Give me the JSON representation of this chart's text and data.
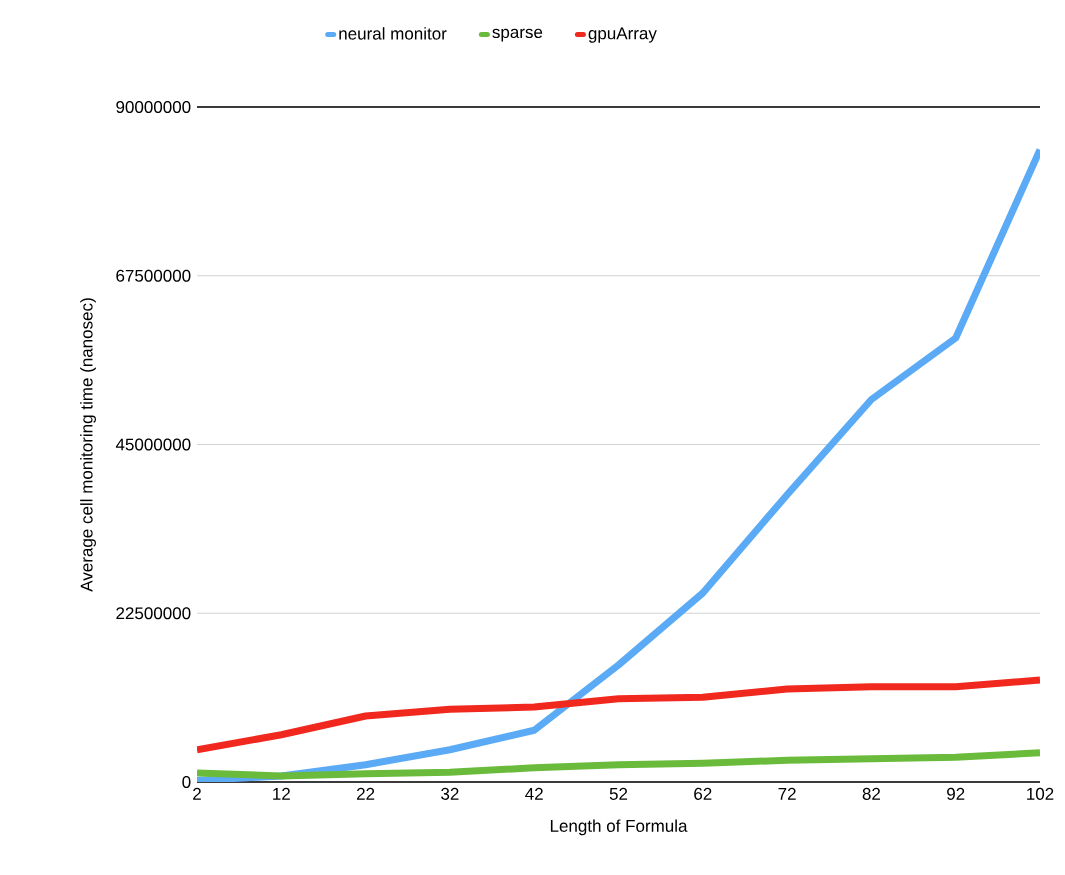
{
  "chart_data": {
    "type": "line",
    "xlabel": "Length of Formula",
    "ylabel": "Average cell monitoring time (nanosec)",
    "x": [
      2,
      12,
      22,
      32,
      42,
      52,
      62,
      72,
      82,
      92,
      102
    ],
    "series": [
      {
        "name": "neural monitor",
        "color": "#5aaaf5",
        "values": [
          200000,
          800000,
          2300000,
          4300000,
          6900000,
          15600000,
          25200000,
          38300000,
          51000000,
          59200000,
          84300000
        ]
      },
      {
        "name": "sparse",
        "color": "#6abb3c",
        "values": [
          1200000,
          800000,
          1100000,
          1300000,
          1900000,
          2300000,
          2500000,
          2900000,
          3100000,
          3300000,
          3900000
        ]
      },
      {
        "name": "gpuArray",
        "color": "#f0281e",
        "values": [
          4300000,
          6300000,
          8800000,
          9700000,
          10000000,
          11100000,
          11300000,
          12400000,
          12700000,
          12700000,
          13600000
        ]
      }
    ],
    "xlim": [
      2,
      102
    ],
    "xticks": [
      2,
      12,
      22,
      32,
      42,
      52,
      62,
      72,
      82,
      92,
      102
    ],
    "ylim": [
      0,
      90000000
    ],
    "yticks": [
      0,
      22500000,
      45000000,
      67500000,
      90000000
    ],
    "grid": "y",
    "legend": "top",
    "marker": "none",
    "line_style": "solid"
  }
}
